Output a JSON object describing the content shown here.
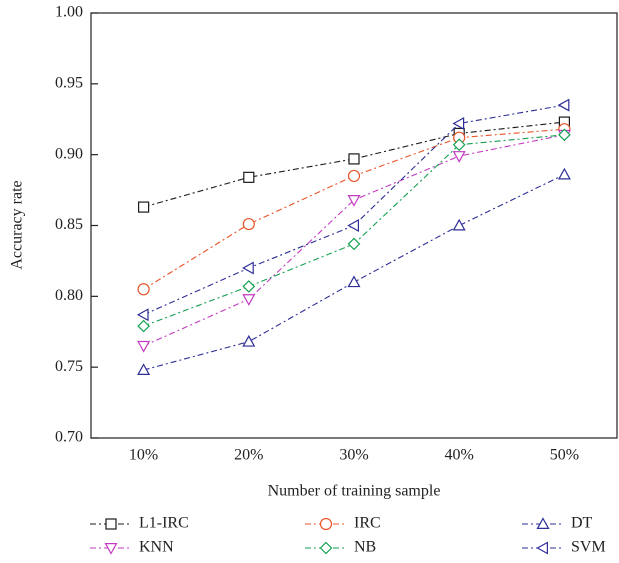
{
  "chart_data": {
    "type": "line",
    "x_label": "Number of training sample",
    "y_label": "Accuracy rate",
    "categories": [
      "10%",
      "20%",
      "30%",
      "40%",
      "50%"
    ],
    "ylim": [
      0.7,
      1.0
    ],
    "yticks": [
      {
        "value": 0.7,
        "label": "0.70"
      },
      0.75,
      {
        "value": 0.8,
        "label": "0.80"
      },
      0.85,
      {
        "value": 0.9,
        "label": "0.90"
      },
      0.95,
      {
        "value": 1.0,
        "label": "1.00"
      }
    ],
    "line_style": "dash-dot",
    "series": [
      {
        "name": "L1-IRC",
        "color": "#1a1a1a",
        "marker": "square",
        "values": [
          0.863,
          0.884,
          0.897,
          0.915,
          0.923
        ]
      },
      {
        "name": "IRC",
        "color": "#e8552a",
        "marker": "circle",
        "values": [
          0.805,
          0.851,
          0.885,
          0.912,
          0.918
        ]
      },
      {
        "name": "DT",
        "color": "#2e2e96",
        "marker": "triangle-up",
        "values": [
          0.748,
          0.768,
          0.81,
          0.85,
          0.886
        ]
      },
      {
        "name": "KNN",
        "color": "#c23bc2",
        "marker": "triangle-down",
        "values": [
          0.765,
          0.798,
          0.868,
          0.899,
          0.914
        ]
      },
      {
        "name": "NB",
        "color": "#14a050",
        "marker": "diamond",
        "values": [
          0.779,
          0.807,
          0.837,
          0.907,
          0.914
        ]
      },
      {
        "name": "SVM",
        "color": "#2e2e96",
        "marker": "triangle-left",
        "values": [
          0.787,
          0.82,
          0.85,
          0.922,
          0.935
        ]
      }
    ]
  }
}
